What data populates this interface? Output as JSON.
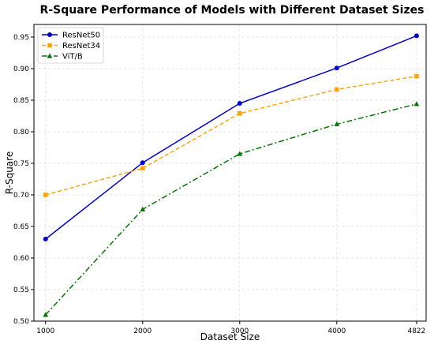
{
  "chart_data": {
    "type": "line",
    "title": "R-Square Performance of Models with Different Dataset Sizes",
    "xlabel": "Dataset Size",
    "ylabel": "R-Square",
    "x": [
      1000,
      2000,
      3000,
      4000,
      4822
    ],
    "x_tick_labels": [
      "1000",
      "2000",
      "3000",
      "4000",
      "4822"
    ],
    "xlim": [
      880,
      4920
    ],
    "ylim": [
      0.5,
      0.97
    ],
    "y_ticks": [
      0.5,
      0.55,
      0.6,
      0.65,
      0.7,
      0.75,
      0.8,
      0.85,
      0.9,
      0.95
    ],
    "y_tick_labels": [
      "0.50",
      "0.55",
      "0.60",
      "0.65",
      "0.70",
      "0.75",
      "0.80",
      "0.85",
      "0.90",
      "0.95"
    ],
    "grid": true,
    "legend_position": "top-left",
    "series": [
      {
        "name": "ResNet50",
        "values": [
          0.63,
          0.751,
          0.845,
          0.901,
          0.952
        ],
        "color": "#0000cc",
        "dash": "solid",
        "marker": "circle"
      },
      {
        "name": "ResNet34",
        "values": [
          0.7,
          0.742,
          0.829,
          0.867,
          0.888
        ],
        "color": "#ffa500",
        "dash": "dashed",
        "marker": "square"
      },
      {
        "name": "ViT/B",
        "values": [
          0.51,
          0.677,
          0.765,
          0.812,
          0.844
        ],
        "color": "#007700",
        "dash": "dashdot",
        "marker": "triangle"
      }
    ]
  }
}
